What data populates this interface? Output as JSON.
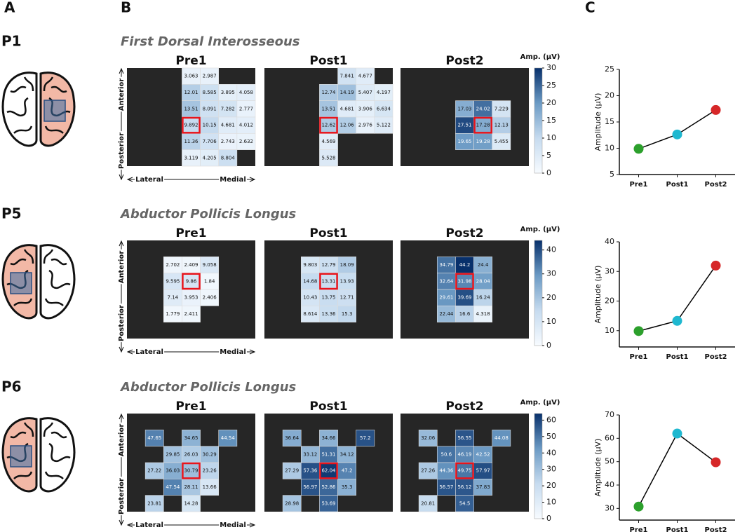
{
  "panel_labels": [
    "A",
    "B",
    "C"
  ],
  "chart_data": [
    {
      "type": "heatmap",
      "participant": "P1",
      "title": "First Dorsal Interosseous",
      "y_labels": [
        "Anterior",
        "Posterior"
      ],
      "x_labels": [
        "Lateral",
        "Medial"
      ],
      "background": "#262626",
      "highlight_color": "#e8141b",
      "colormap": [
        "#f7fbff",
        "#c6dbef",
        "#6b9ac4",
        "#08306b"
      ],
      "colorbar": {
        "label": "Amp. (μV)",
        "lim": [
          0,
          30
        ],
        "ticks": [
          0,
          5,
          10,
          15,
          20,
          25,
          30
        ]
      },
      "panels": [
        {
          "title": "Pre1",
          "highlight": [
            3,
            3
          ],
          "values": [
            [
              null,
              null,
              null,
              3.063,
              2.987,
              null,
              null
            ],
            [
              null,
              null,
              null,
              12.01,
              8.585,
              3.895,
              4.058
            ],
            [
              null,
              null,
              null,
              13.51,
              8.091,
              7.282,
              2.777
            ],
            [
              null,
              null,
              null,
              9.892,
              10.15,
              4.681,
              4.012
            ],
            [
              null,
              null,
              null,
              11.36,
              7.706,
              2.743,
              2.632
            ],
            [
              null,
              null,
              null,
              3.119,
              4.205,
              8.804,
              null
            ]
          ]
        },
        {
          "title": "Post1",
          "highlight": [
            3,
            3
          ],
          "values": [
            [
              null,
              null,
              null,
              null,
              7.841,
              4.677,
              null
            ],
            [
              null,
              null,
              null,
              12.74,
              14.19,
              5.407,
              4.197
            ],
            [
              null,
              null,
              null,
              13.51,
              4.681,
              3.906,
              6.634
            ],
            [
              null,
              null,
              null,
              12.62,
              12.06,
              2.976,
              5.122
            ],
            [
              null,
              null,
              null,
              4.569,
              null,
              null,
              null
            ],
            [
              null,
              null,
              null,
              5.528,
              null,
              null,
              null
            ]
          ]
        },
        {
          "title": "Post2",
          "highlight": [
            3,
            4
          ],
          "values": [
            [
              null,
              null,
              null,
              null,
              null,
              null,
              null
            ],
            [
              null,
              null,
              null,
              null,
              null,
              null,
              null
            ],
            [
              null,
              null,
              null,
              17.03,
              24.02,
              7.229,
              null
            ],
            [
              null,
              null,
              null,
              27.51,
              17.28,
              12.13,
              null
            ],
            [
              null,
              null,
              null,
              19.65,
              19.28,
              5.455,
              null
            ],
            [
              null,
              null,
              null,
              null,
              null,
              null,
              null
            ]
          ]
        }
      ]
    },
    {
      "type": "line",
      "ylabel": "Amplitude (μV)",
      "categories": [
        "Pre1",
        "Post1",
        "Post2"
      ],
      "values": [
        9.892,
        12.62,
        17.28
      ],
      "point_colors": [
        "#2ca02c",
        "#1fb8d0",
        "#d62728"
      ],
      "line_color": "#000000",
      "ylim": [
        5,
        25
      ],
      "yticks": [
        5,
        10,
        15,
        20,
        25
      ]
    },
    {
      "type": "heatmap",
      "participant": "P5",
      "title": "Abductor Pollicis Longus",
      "y_labels": [
        "Anterior",
        "Posterior"
      ],
      "x_labels": [
        "Lateral",
        "Medial"
      ],
      "background": "#262626",
      "highlight_color": "#e8141b",
      "colormap": [
        "#f7fbff",
        "#c6dbef",
        "#6b9ac4",
        "#08306b"
      ],
      "colorbar": {
        "label": "Amp. (μV)",
        "lim": [
          0,
          44
        ],
        "ticks": [
          0,
          10,
          20,
          30,
          40
        ]
      },
      "panels": [
        {
          "title": "Pre1",
          "highlight": [
            2,
            3
          ],
          "values": [
            [
              null,
              null,
              null,
              null,
              null,
              null,
              null
            ],
            [
              null,
              null,
              2.702,
              2.409,
              9.058,
              null,
              null
            ],
            [
              null,
              null,
              9.595,
              9.86,
              1.84,
              null,
              null
            ],
            [
              null,
              null,
              7.14,
              3.953,
              2.406,
              null,
              null
            ],
            [
              null,
              null,
              1.779,
              2.411,
              null,
              null,
              null
            ],
            [
              null,
              null,
              null,
              null,
              null,
              null,
              null
            ]
          ]
        },
        {
          "title": "Post1",
          "highlight": [
            2,
            3
          ],
          "values": [
            [
              null,
              null,
              null,
              null,
              null,
              null,
              null
            ],
            [
              null,
              null,
              9.803,
              12.79,
              18.09,
              null,
              null
            ],
            [
              null,
              null,
              14.68,
              13.31,
              13.93,
              null,
              null
            ],
            [
              null,
              null,
              10.43,
              13.75,
              12.71,
              null,
              null
            ],
            [
              null,
              null,
              8.614,
              13.36,
              15.3,
              null,
              null
            ],
            [
              null,
              null,
              null,
              null,
              null,
              null,
              null
            ]
          ]
        },
        {
          "title": "Post2",
          "highlight": [
            2,
            3
          ],
          "values": [
            [
              null,
              null,
              null,
              null,
              null,
              null,
              null
            ],
            [
              null,
              null,
              34.79,
              44.2,
              24.4,
              null,
              null
            ],
            [
              null,
              null,
              32.64,
              31.98,
              28.04,
              null,
              null
            ],
            [
              null,
              null,
              29.61,
              39.69,
              16.24,
              null,
              null
            ],
            [
              null,
              null,
              22.44,
              16.6,
              4.318,
              null,
              null
            ],
            [
              null,
              null,
              null,
              null,
              null,
              null,
              null
            ]
          ]
        }
      ]
    },
    {
      "type": "line",
      "ylabel": "Amplitude (μV)",
      "categories": [
        "Pre1",
        "Post1",
        "Post2"
      ],
      "values": [
        9.86,
        13.31,
        31.98
      ],
      "point_colors": [
        "#2ca02c",
        "#1fb8d0",
        "#d62728"
      ],
      "line_color": "#000000",
      "ylim": [
        4.5,
        40
      ],
      "yticks": [
        10,
        20,
        30,
        40
      ]
    },
    {
      "type": "heatmap",
      "participant": "P6",
      "title": "Abductor Pollicis Longus",
      "y_labels": [
        "Anterior",
        "Posterior"
      ],
      "x_labels": [
        "Lateral",
        "Medial"
      ],
      "background": "#262626",
      "highlight_color": "#e8141b",
      "colormap": [
        "#f7fbff",
        "#c6dbef",
        "#6b9ac4",
        "#08306b"
      ],
      "colorbar": {
        "label": "Amp. (μV)",
        "lim": [
          0,
          64
        ],
        "ticks": [
          0,
          10,
          20,
          30,
          40,
          50,
          60
        ]
      },
      "panels": [
        {
          "title": "Pre1",
          "highlight": [
            3,
            3
          ],
          "values": [
            [
              null,
              null,
              null,
              null,
              null,
              null,
              null
            ],
            [
              null,
              47.65,
              null,
              34.65,
              null,
              44.54,
              null
            ],
            [
              null,
              null,
              29.85,
              26.03,
              30.29,
              null,
              null
            ],
            [
              null,
              27.22,
              36.03,
              30.79,
              23.26,
              null,
              null
            ],
            [
              null,
              null,
              47.54,
              28.11,
              13.66,
              null,
              null
            ],
            [
              null,
              23.81,
              null,
              14.28,
              null,
              null,
              null
            ]
          ]
        },
        {
          "title": "Post1",
          "highlight": [
            3,
            3
          ],
          "values": [
            [
              null,
              null,
              null,
              null,
              null,
              null,
              null
            ],
            [
              null,
              36.64,
              null,
              34.66,
              null,
              57.2,
              null
            ],
            [
              null,
              null,
              33.12,
              51.31,
              34.12,
              null,
              null
            ],
            [
              null,
              27.29,
              57.36,
              62.04,
              47.2,
              null,
              null
            ],
            [
              null,
              null,
              56.97,
              52.86,
              35.3,
              null,
              null
            ],
            [
              null,
              28.98,
              null,
              53.69,
              null,
              null,
              null
            ]
          ]
        },
        {
          "title": "Post2",
          "highlight": [
            3,
            3
          ],
          "values": [
            [
              null,
              null,
              null,
              null,
              null,
              null,
              null
            ],
            [
              null,
              32.06,
              null,
              56.55,
              null,
              44.08,
              null
            ],
            [
              null,
              null,
              50.6,
              46.19,
              42.52,
              null,
              null
            ],
            [
              null,
              27.26,
              44.36,
              49.75,
              57.97,
              null,
              null
            ],
            [
              null,
              null,
              56.57,
              56.12,
              37.83,
              null,
              null
            ],
            [
              null,
              20.81,
              null,
              54.5,
              null,
              null,
              null
            ]
          ]
        }
      ]
    },
    {
      "type": "line",
      "ylabel": "Amplitude (μV)",
      "categories": [
        "Pre1",
        "Post1",
        "Post2"
      ],
      "values": [
        30.79,
        62.04,
        49.75
      ],
      "point_colors": [
        "#2ca02c",
        "#1fb8d0",
        "#d62728"
      ],
      "line_color": "#000000",
      "ylim": [
        25,
        70
      ],
      "yticks": [
        30,
        40,
        50,
        60,
        70
      ]
    }
  ]
}
